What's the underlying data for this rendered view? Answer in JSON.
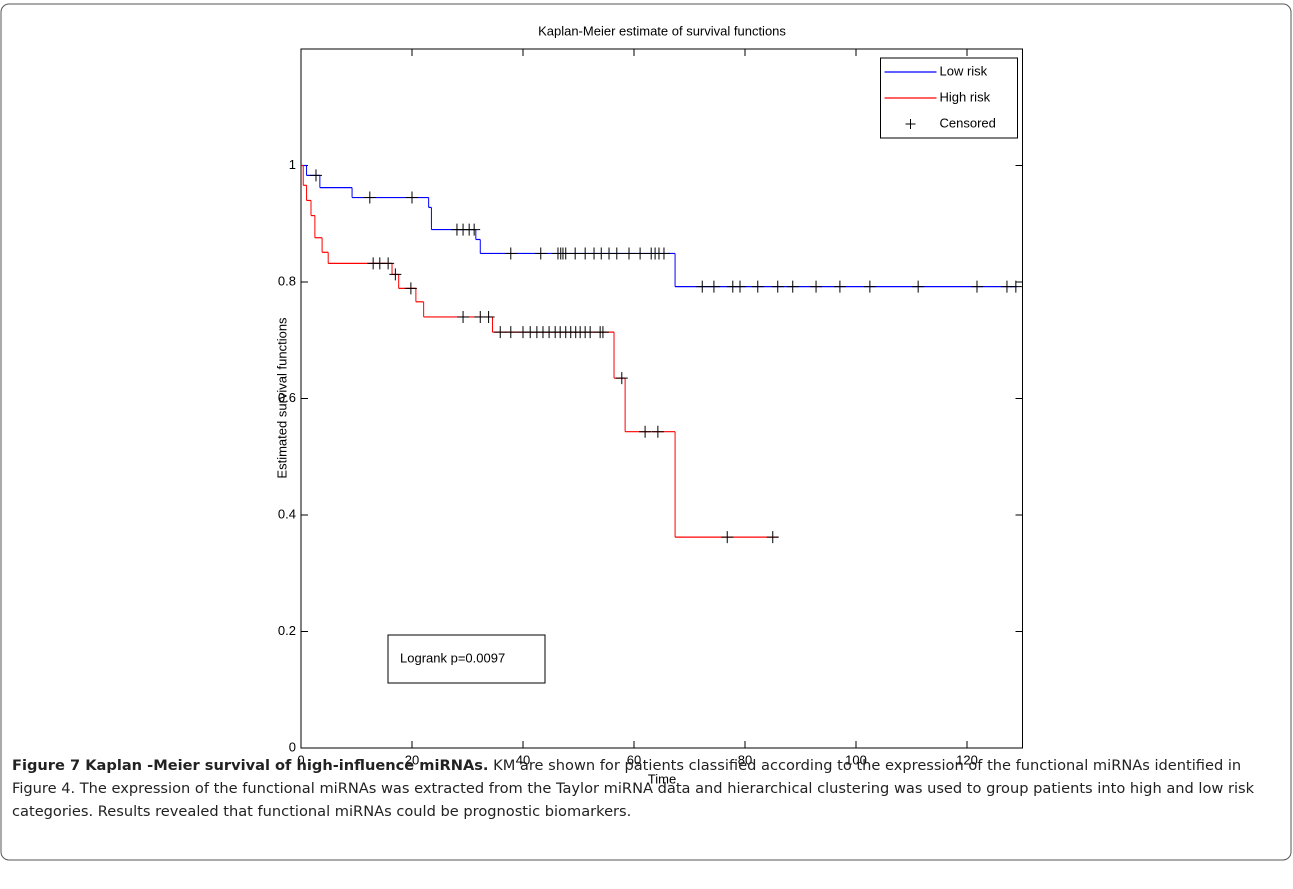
{
  "chart_data": {
    "type": "step",
    "title": "Kaplan-Meier estimate of survival functions",
    "x_label": "Time",
    "y_label": "Estimated survival functions",
    "annotation": "Logrank p=0.0097",
    "caption_title": "Figure 7 Kaplan -Meier survival of high-influence miRNAs.",
    "caption": "KM are shown for patients classified according to the expression of the functional miRNAs identified in Figure 4. The expression of the functional miRNAs was extracted from the Taylor miRNA data and hierarchical clustering was used to group patients into high and low risk categories. Results revealed that functional miRNAs could be prognostic biomarkers.",
    "xlim": [
      0,
      130
    ],
    "xticks": [
      0,
      20,
      40,
      60,
      80,
      100,
      120
    ],
    "ylim": [
      0,
      1.2
    ],
    "yticks": [
      0,
      0.2,
      0.4,
      0.6,
      0.8,
      1
    ],
    "legend": "top-right",
    "series": [
      {
        "name": "Low risk",
        "color": "#0000ff",
        "x": [
          0,
          1.0,
          3.4,
          9.2,
          23,
          23.5,
          31.5,
          32.3,
          67.4,
          129
        ],
        "values": [
          1,
          0.983,
          0.962,
          0.945,
          0.928,
          0.89,
          0.873,
          0.849,
          0.792,
          0.792
        ]
      },
      {
        "name": "High risk",
        "color": "#ff0000",
        "x": [
          0,
          0.4,
          1,
          1.8,
          2.5,
          3.8,
          4.9,
          16.4,
          17.6,
          20.7,
          22.1,
          34.5,
          56.4,
          58.4,
          67.4,
          86
        ],
        "values": [
          1,
          0.966,
          0.94,
          0.914,
          0.876,
          0.851,
          0.832,
          0.813,
          0.789,
          0.766,
          0.74,
          0.714,
          0.635,
          0.543,
          0.362,
          0.362
        ]
      },
      {
        "name": "Censored",
        "color": "#000000",
        "marker": "+",
        "x": [
          2.7,
          12.4,
          20,
          28.1,
          29.2,
          30.3,
          31.2,
          37.8,
          43.2,
          46.3,
          46.8,
          47.2,
          47.7,
          49.4,
          51.2,
          52.8,
          54.1,
          55.5,
          56.9,
          59.1,
          61.1,
          63.1,
          63.8,
          64.5,
          65.4,
          72.3,
          74.4,
          77.8,
          79.1,
          82.3,
          85.9,
          88.6,
          92.8,
          97.1,
          102.5,
          111.2,
          121.8,
          127.2,
          128.8,
          13.0,
          14.2,
          15.7,
          17.0,
          19.8,
          29.2,
          32.3,
          33.8,
          35.9,
          37.8,
          40.0,
          41.3,
          42.5,
          43.6,
          44.7,
          45.8,
          46.7,
          47.7,
          48.6,
          49.5,
          50.3,
          51.2,
          52.1,
          53.9,
          54.4,
          57.8,
          62.0,
          64.3,
          76.8,
          85.0
        ],
        "values": [
          0.983,
          0.945,
          0.945,
          0.89,
          0.89,
          0.89,
          0.89,
          0.849,
          0.849,
          0.849,
          0.849,
          0.849,
          0.849,
          0.849,
          0.849,
          0.849,
          0.849,
          0.849,
          0.849,
          0.849,
          0.849,
          0.849,
          0.849,
          0.849,
          0.849,
          0.792,
          0.792,
          0.792,
          0.792,
          0.792,
          0.792,
          0.792,
          0.792,
          0.792,
          0.792,
          0.792,
          0.792,
          0.792,
          0.792,
          0.832,
          0.832,
          0.832,
          0.813,
          0.789,
          0.74,
          0.74,
          0.74,
          0.714,
          0.714,
          0.714,
          0.714,
          0.714,
          0.714,
          0.714,
          0.714,
          0.714,
          0.714,
          0.714,
          0.714,
          0.714,
          0.714,
          0.714,
          0.714,
          0.714,
          0.635,
          0.543,
          0.543,
          0.362,
          0.362
        ]
      }
    ]
  }
}
